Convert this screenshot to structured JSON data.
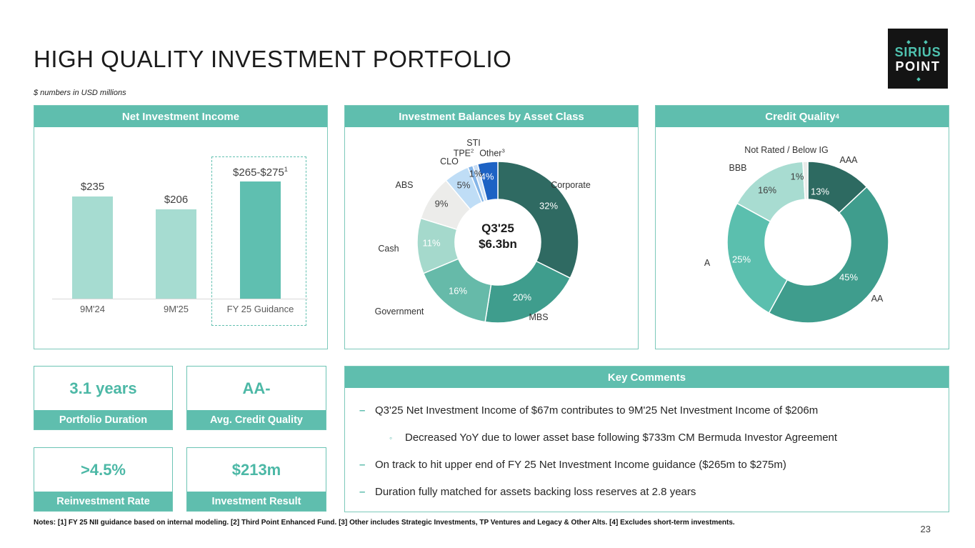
{
  "slide": {
    "title": "HIGH QUALITY INVESTMENT PORTFOLIO",
    "subtitle": "$ numbers in USD millions",
    "notes": "Notes: [1] FY 25 NII guidance based on internal modeling. [2] Third Point Enhanced Fund. [3] Other includes Strategic Investments, TP Ventures and Legacy & Other Alts. [4] Excludes short-term investments.",
    "page_number": "23"
  },
  "logo": {
    "line1": "SIRIUS",
    "line2": "POINT"
  },
  "theme": {
    "accent": "#5fbeae",
    "accent_dark": "#2f6a62",
    "bar_light": "#a6dcd1",
    "bar_highlight": "#5fbfb0"
  },
  "chart_data": [
    {
      "type": "bar",
      "title": "Net Investment Income",
      "categories": [
        "9M'24",
        "9M'25",
        "FY 25 Guidance"
      ],
      "values": [
        235,
        206,
        270
      ],
      "value_labels": [
        "$235",
        "$206",
        "$265-$275"
      ],
      "value_label_sups": [
        "",
        "",
        "1"
      ],
      "colors": [
        "#a6dcd1",
        "#a6dcd1",
        "#5fbfb0"
      ],
      "ylim": [
        0,
        280
      ],
      "highlighted_category": "FY 25 Guidance"
    },
    {
      "type": "donut",
      "title": "Investment Balances by Asset Class",
      "center_line1": "Q3'25",
      "center_line2": "$6.3bn",
      "slices": [
        {
          "label": "Corporate",
          "label_sup": "",
          "value": 32,
          "pct_label": "32%",
          "color": "#2f6a62",
          "pct_color": "#ffffff"
        },
        {
          "label": "MBS",
          "label_sup": "",
          "value": 20,
          "pct_label": "20%",
          "color": "#3f9d8d",
          "pct_color": "#ffffff"
        },
        {
          "label": "Government",
          "label_sup": "",
          "value": 16,
          "pct_label": "16%",
          "color": "#66baa9",
          "pct_color": "#ffffff"
        },
        {
          "label": "Cash",
          "label_sup": "",
          "value": 11,
          "pct_label": "11%",
          "color": "#a5d9cc",
          "pct_color": "#ffffff"
        },
        {
          "label": "ABS",
          "label_sup": "",
          "value": 9,
          "pct_label": "9%",
          "color": "#ececea",
          "pct_color": "#3f3f3f"
        },
        {
          "label": "CLO",
          "label_sup": "",
          "value": 5,
          "pct_label": "5%",
          "color": "#bfddf6",
          "pct_color": "#3f3f3f"
        },
        {
          "label": "TPE",
          "label_sup": "2",
          "value": 1,
          "pct_label": "1%",
          "color": "#84b5e8",
          "pct_color": "#3f3f3f"
        },
        {
          "label": "STI",
          "label_sup": "",
          "value": 1,
          "pct_label": "",
          "color": "#c9def5",
          "pct_color": "#3f3f3f"
        },
        {
          "label": "Other",
          "label_sup": "3",
          "value": 4,
          "pct_label": "4%",
          "color": "#1d62c4",
          "pct_color": "#ffffff"
        }
      ]
    },
    {
      "type": "donut",
      "title": "Credit Quality",
      "title_sup": "4",
      "slices": [
        {
          "label": "AAA",
          "label_sup": "",
          "value": 13,
          "pct_label": "13%",
          "color": "#2d6a61",
          "pct_color": "#ffffff"
        },
        {
          "label": "AA",
          "label_sup": "",
          "value": 45,
          "pct_label": "45%",
          "color": "#3f9d8d",
          "pct_color": "#ffffff"
        },
        {
          "label": "A",
          "label_sup": "",
          "value": 25,
          "pct_label": "25%",
          "color": "#5bbfae",
          "pct_color": "#ffffff"
        },
        {
          "label": "BBB",
          "label_sup": "",
          "value": 16,
          "pct_label": "16%",
          "color": "#a8dcd1",
          "pct_color": "#3f3f3f"
        },
        {
          "label": "Not Rated / Below IG",
          "label_sup": "",
          "value": 1,
          "pct_label": "1%",
          "color": "#e9ebe9",
          "pct_color": "#3f3f3f"
        }
      ]
    }
  ],
  "stats": [
    {
      "value": "3.1 years",
      "label": "Portfolio Duration"
    },
    {
      "value": "AA-",
      "label": "Avg. Credit Quality"
    },
    {
      "value": ">4.5%",
      "label": "Reinvestment Rate"
    },
    {
      "value": "$213m",
      "label": "Investment Result"
    }
  ],
  "key_comments": {
    "title": "Key Comments",
    "bullets": [
      {
        "level": 1,
        "text": "Q3'25 Net Investment Income of $67m contributes to 9M'25 Net Investment Income of $206m"
      },
      {
        "level": 2,
        "text": "Decreased YoY due to lower asset base following $733m CM Bermuda Investor Agreement"
      },
      {
        "level": 1,
        "text": "On track to hit upper end of FY 25 Net Investment Income guidance ($265m to $275m)"
      },
      {
        "level": 1,
        "text": "Duration fully matched for assets backing loss reserves at 2.8 years"
      }
    ]
  }
}
